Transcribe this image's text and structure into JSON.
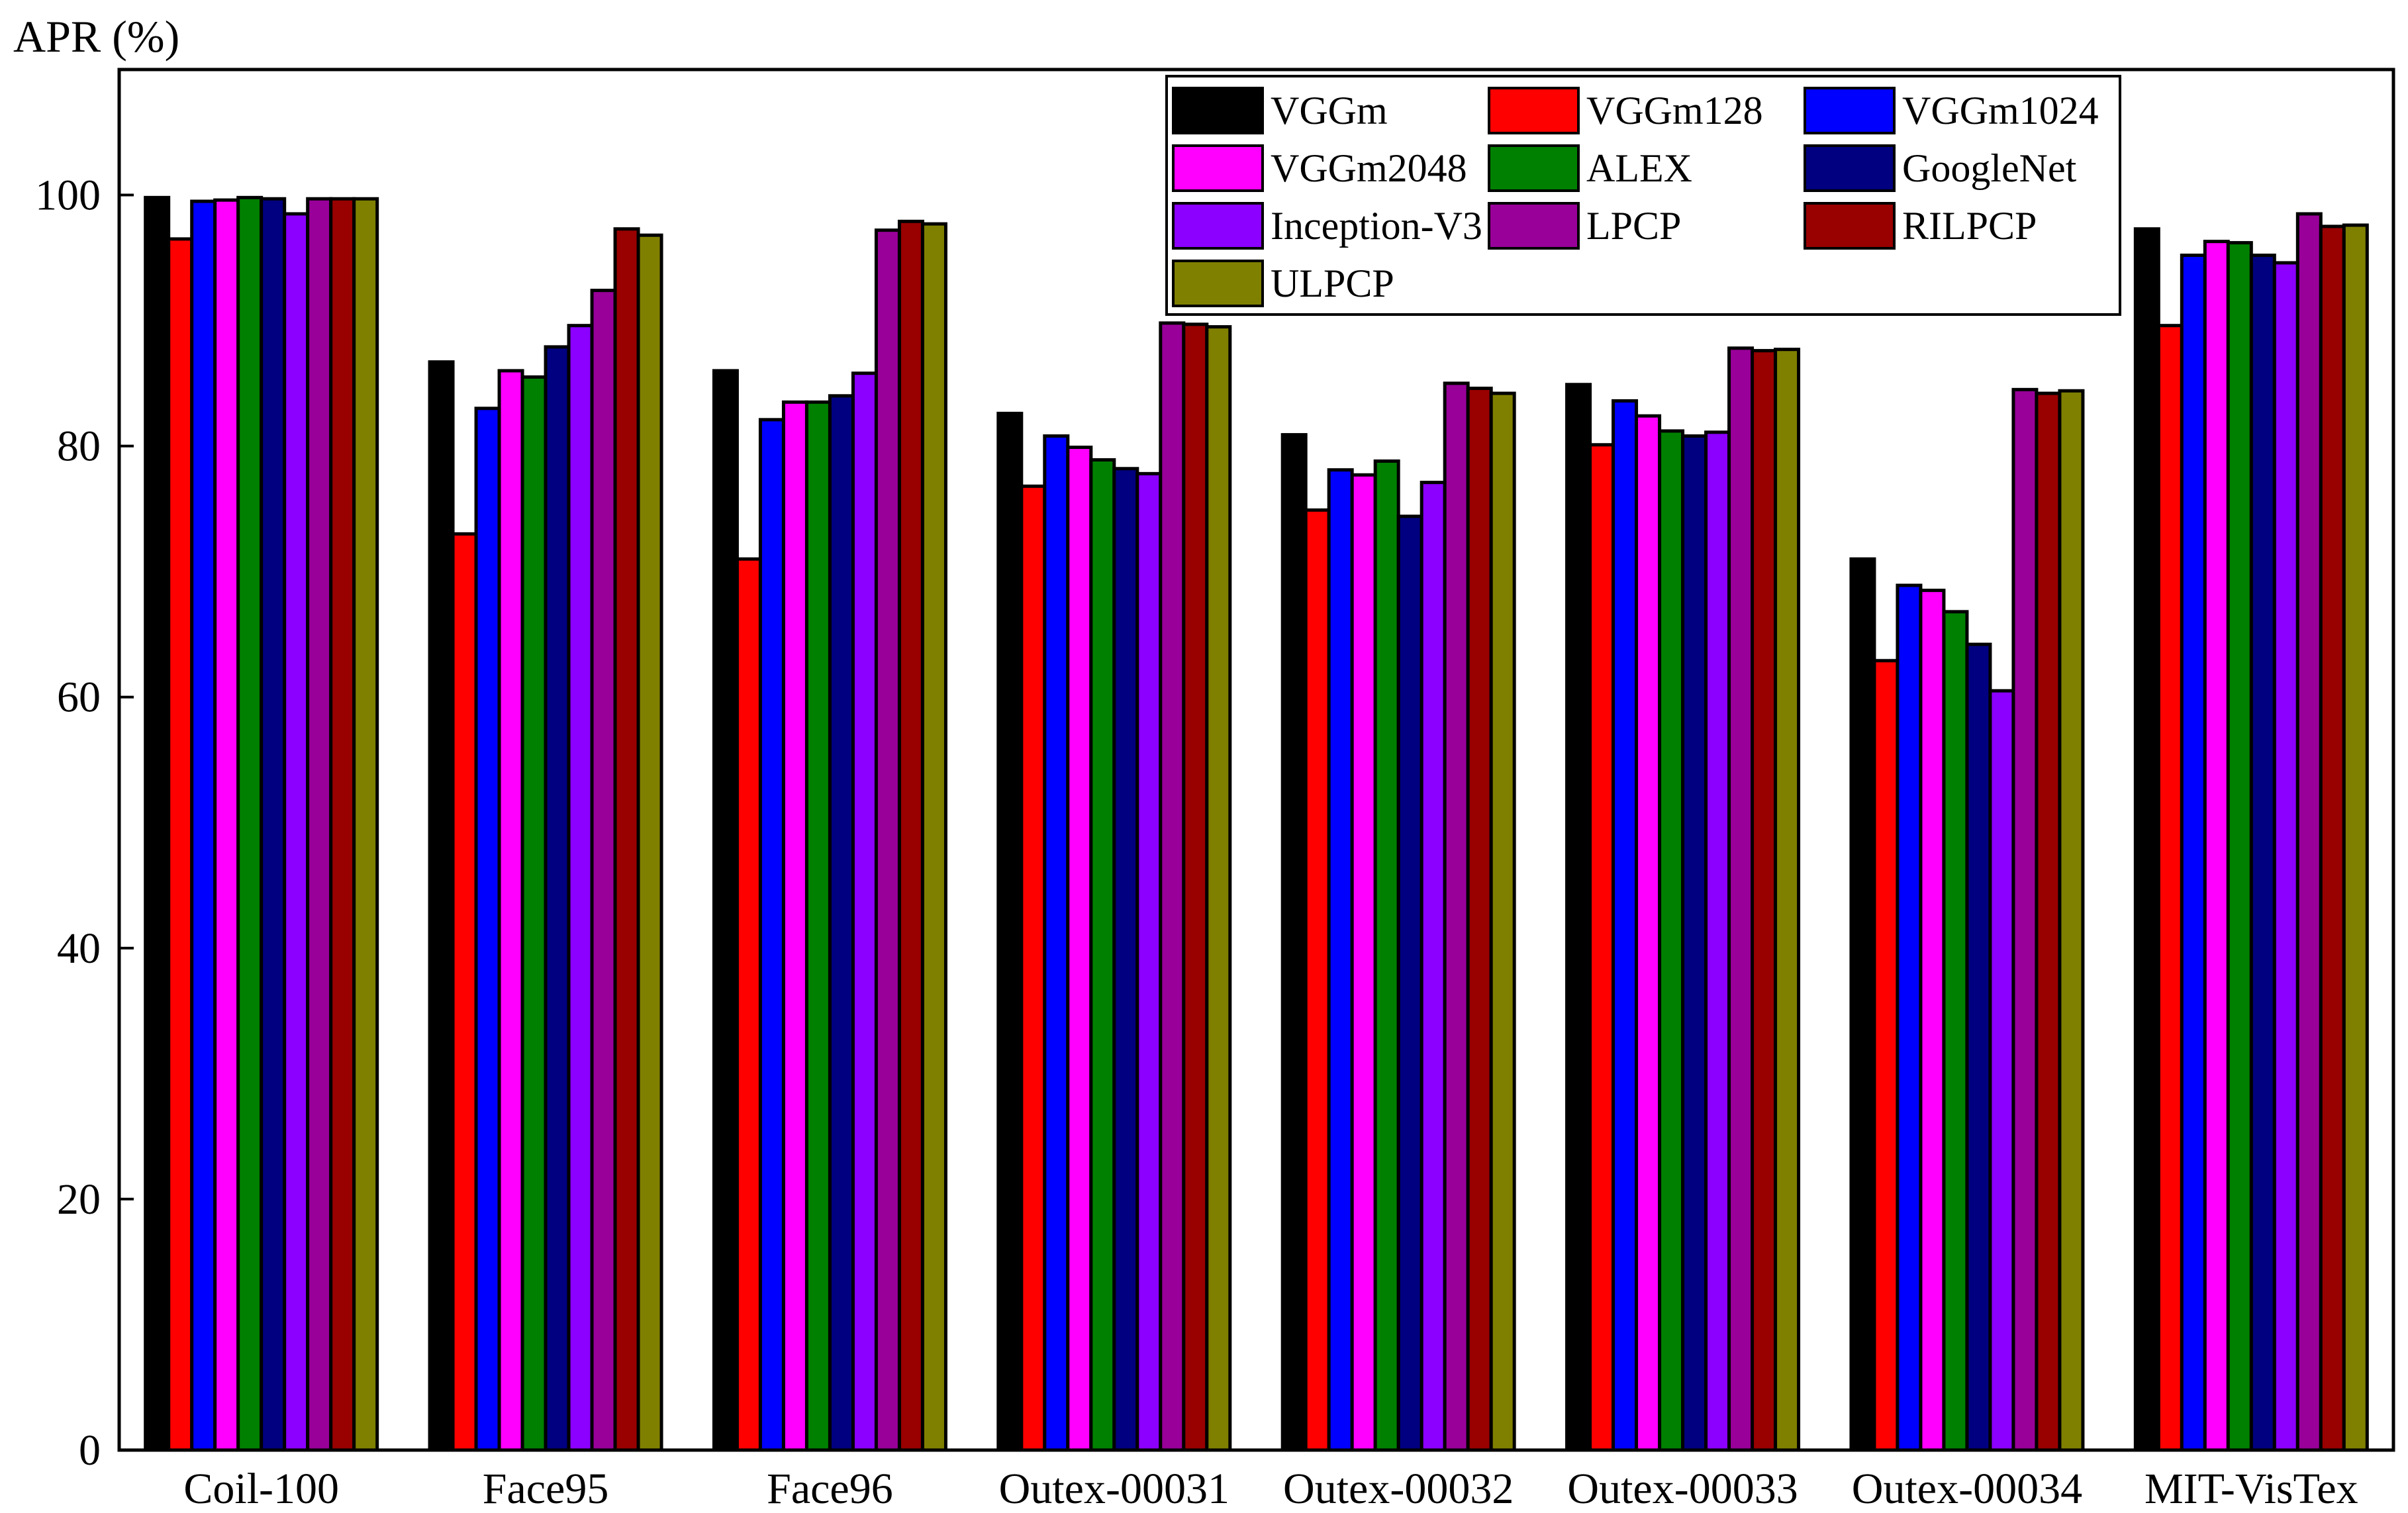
{
  "chart_data": {
    "type": "bar",
    "title": "",
    "xlabel": "",
    "ylabel": "APR (%)",
    "ylim": [
      0,
      110
    ],
    "yticks": [
      0,
      20,
      40,
      60,
      80,
      100
    ],
    "grid": false,
    "legend_position": "top-right",
    "categories": [
      "Coil-100",
      "Face95",
      "Face96",
      "Outex-00031",
      "Outex-00032",
      "Outex-00033",
      "Outex-00034",
      "MIT-VisTex"
    ],
    "series": [
      {
        "name": "VGGm",
        "color": "#000000",
        "values": [
          99.8,
          86.7,
          86.0,
          82.6,
          80.9,
          84.9,
          71.0,
          97.3
        ]
      },
      {
        "name": "VGGm128",
        "color": "#ff0000",
        "values": [
          96.5,
          73.0,
          71.0,
          76.8,
          74.9,
          80.1,
          62.9,
          89.6
        ]
      },
      {
        "name": "VGGm1024",
        "color": "#0000ff",
        "values": [
          99.5,
          83.0,
          82.1,
          80.8,
          78.1,
          83.6,
          68.9,
          95.2
        ]
      },
      {
        "name": "VGGm2048",
        "color": "#ff00ff",
        "values": [
          99.6,
          86.0,
          83.5,
          79.9,
          77.7,
          82.4,
          68.5,
          96.3
        ]
      },
      {
        "name": "ALEX",
        "color": "#008000",
        "values": [
          99.8,
          85.5,
          83.5,
          78.9,
          78.8,
          81.2,
          66.8,
          96.2
        ]
      },
      {
        "name": "GoogleNet",
        "color": "#000080",
        "values": [
          99.7,
          87.9,
          84.0,
          78.2,
          74.4,
          80.8,
          64.2,
          95.2
        ]
      },
      {
        "name": "Inception-V3",
        "color": "#8b00ff",
        "values": [
          98.5,
          89.6,
          85.8,
          77.8,
          77.1,
          81.1,
          60.5,
          94.6
        ]
      },
      {
        "name": "LPCP",
        "color": "#990099",
        "values": [
          99.7,
          92.4,
          97.2,
          89.8,
          85.0,
          87.8,
          84.5,
          98.5
        ]
      },
      {
        "name": "RILPCP",
        "color": "#990000",
        "values": [
          99.7,
          97.3,
          97.9,
          89.7,
          84.6,
          87.6,
          84.2,
          97.5
        ]
      },
      {
        "name": "ULPCP",
        "color": "#808000",
        "values": [
          99.7,
          96.8,
          97.7,
          89.5,
          84.2,
          87.7,
          84.4,
          97.6
        ]
      }
    ]
  }
}
